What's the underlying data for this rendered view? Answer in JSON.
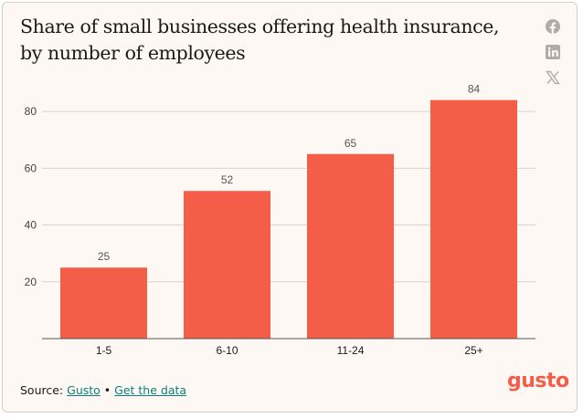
{
  "title": "Share of small businesses offering health insurance, by number of employees",
  "share": {
    "facebook_icon": "facebook-icon",
    "linkedin_icon": "linkedin-icon",
    "x_icon": "x-icon"
  },
  "chart_data": {
    "type": "bar",
    "categories": [
      "1-5",
      "6-10",
      "11-24",
      "25+"
    ],
    "values": [
      25,
      52,
      65,
      84
    ],
    "title": "Share of small businesses offering health insurance, by number of employees",
    "xlabel": "",
    "ylabel": "",
    "ylim": [
      0,
      90
    ],
    "yticks": [
      20,
      40,
      60,
      80
    ],
    "grid": true,
    "data_labels": true,
    "colors": {
      "bar": "#f45d48",
      "grid": "#d9d3cb",
      "axis": "#555555",
      "text": "#444444",
      "value_text": "#555555"
    }
  },
  "footer": {
    "source_label": "Source:",
    "source_link": "Gusto",
    "separator": "•",
    "data_link": "Get the data"
  },
  "logo": "gusto"
}
